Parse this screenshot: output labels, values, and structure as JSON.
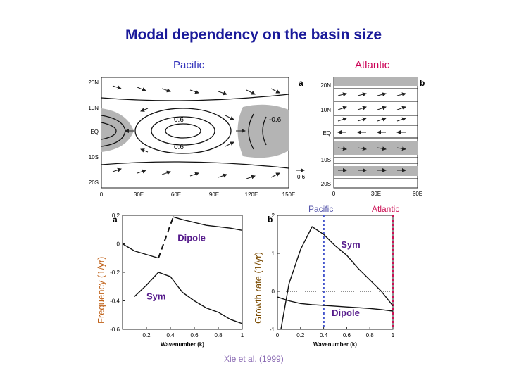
{
  "slide": {
    "title": "Modal dependency on the basin size",
    "pacific_label": "Pacific",
    "atlantic_label": "Atlantic",
    "citation": "Xie et al. (1999)"
  },
  "colors": {
    "title": "#1a1a9a",
    "pacific": "#3333bb",
    "atlantic": "#cc0055",
    "shade": "#b4b4b4"
  },
  "maps": [
    {
      "panel": "a",
      "lat_ticks": [
        "20N",
        "10N",
        "EQ",
        "10S",
        "20S"
      ],
      "lon_ticks": [
        "0",
        "30E",
        "60E",
        "90E",
        "120E",
        "150E"
      ],
      "contour_labels": [
        "0.6",
        "-0.6",
        "0.6"
      ],
      "vector_scale": "0.6"
    },
    {
      "panel": "b",
      "lat_ticks": [
        "20N",
        "10N",
        "EQ",
        "10S",
        "20S"
      ],
      "lon_ticks": [
        "0",
        "30E",
        "60E"
      ]
    }
  ],
  "chart_data": [
    {
      "type": "line",
      "panel": "a",
      "ylabel": "Frequency (1/yr)",
      "xlabel": "Wavenumber (k)",
      "xlim": [
        0,
        1
      ],
      "ylim": [
        -0.6,
        0.2
      ],
      "x_ticks": [
        "0.2",
        "0.4",
        "0.6",
        "0.8",
        "1"
      ],
      "y_ticks": [
        "0.2",
        "0",
        "-0.2",
        "-0.4",
        "-0.6"
      ],
      "series": [
        {
          "name": "Dipole",
          "x": [
            0.0,
            0.1,
            0.3
          ],
          "y": [
            0.0,
            -0.05,
            -0.1
          ],
          "style": "solid"
        },
        {
          "name": "",
          "x": [
            0.3,
            0.42
          ],
          "y": [
            -0.1,
            0.18
          ],
          "style": "dashed"
        },
        {
          "name": "",
          "x": [
            0.42,
            0.5,
            0.6,
            0.7,
            0.8,
            0.9,
            1.0
          ],
          "y": [
            0.19,
            0.17,
            0.15,
            0.13,
            0.12,
            0.11,
            0.095
          ],
          "style": "solid"
        },
        {
          "name": "Sym",
          "x": [
            0.1,
            0.2,
            0.3,
            0.4,
            0.5,
            0.6,
            0.7,
            0.8,
            0.9,
            1.0
          ],
          "y": [
            -0.37,
            -0.29,
            -0.2,
            -0.23,
            -0.34,
            -0.4,
            -0.45,
            -0.48,
            -0.53,
            -0.56
          ],
          "style": "solid"
        }
      ]
    },
    {
      "type": "line",
      "panel": "b",
      "ylabel": "Growth rate (1/yr)",
      "xlabel": "Wavenumber (k)",
      "xlim": [
        0,
        1
      ],
      "ylim": [
        -1,
        2
      ],
      "x_ticks": [
        "0",
        "0.2",
        "0.4",
        "0.6",
        "0.8",
        "1"
      ],
      "y_ticks": [
        "2",
        "1",
        "0",
        "-1"
      ],
      "series": [
        {
          "name": "Sym",
          "x": [
            0.03,
            0.1,
            0.2,
            0.3,
            0.4,
            0.5,
            0.6,
            0.7,
            0.8,
            0.9,
            1.0
          ],
          "y": [
            -1.0,
            0.2,
            1.1,
            1.7,
            1.5,
            1.2,
            0.95,
            0.6,
            0.3,
            0.0,
            -0.38
          ],
          "style": "solid"
        },
        {
          "name": "Dipole",
          "x": [
            0.0,
            0.1,
            0.2,
            0.3,
            0.4,
            0.5,
            0.6,
            0.7,
            0.8,
            0.9,
            1.0
          ],
          "y": [
            -0.15,
            -0.25,
            -0.32,
            -0.35,
            -0.37,
            -0.39,
            -0.41,
            -0.43,
            -0.45,
            -0.48,
            -0.52
          ],
          "style": "solid"
        }
      ],
      "reference_lines": [
        {
          "name": "Pacific",
          "x": 0.4,
          "color": "#4455cc"
        },
        {
          "name": "Atlantic",
          "x": 1.0,
          "color": "#cc1155"
        }
      ],
      "zero_line": true
    }
  ]
}
